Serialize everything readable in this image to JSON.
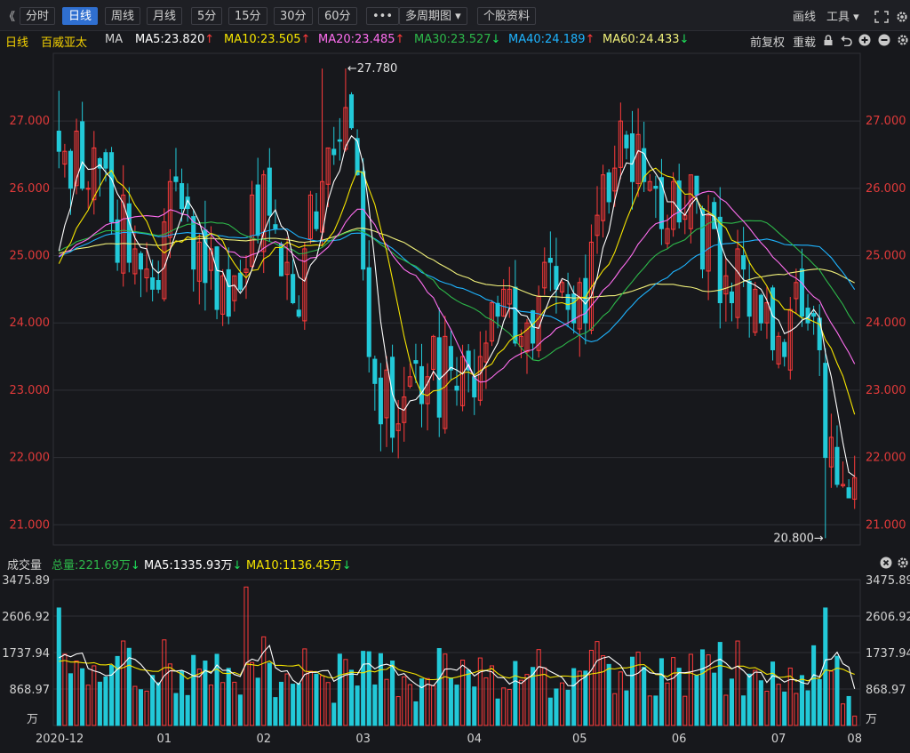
{
  "toolbar": {
    "collapse": "《",
    "tabs": [
      "分时",
      "日线",
      "周线",
      "月线",
      "5分",
      "15分",
      "30分",
      "60分",
      "•••",
      "多周期图 ▾",
      "个股资料"
    ],
    "active": "日线",
    "right": {
      "draw": "画线",
      "tools": "工具 ▾"
    }
  },
  "legend": {
    "period": "日线",
    "stock": "百威亚太",
    "ma_label": "MA",
    "ma": [
      {
        "text": "MA5:23.820",
        "arrow": "↑",
        "color": "#ffffff",
        "arrow_color": "#ff3b3b"
      },
      {
        "text": "MA10:23.505",
        "arrow": "↑",
        "color": "#f5e400",
        "arrow_color": "#ff3b3b"
      },
      {
        "text": "MA20:23.485",
        "arrow": "↑",
        "color": "#ff6ef0",
        "arrow_color": "#ff3b3b"
      },
      {
        "text": "MA30:23.527",
        "arrow": "↓",
        "color": "#2db84a",
        "arrow_color": "#1ee05a"
      },
      {
        "text": "MA40:24.189",
        "arrow": "↑",
        "color": "#1eb4ff",
        "arrow_color": "#ff3b3b"
      },
      {
        "text": "MA60:24.433",
        "arrow": "↓",
        "color": "#f0f07a",
        "arrow_color": "#1ee05a"
      }
    ],
    "right": {
      "adjust": "前复权",
      "overlay": "重载"
    }
  },
  "vol_legend": {
    "title": "成交量",
    "total": {
      "text": "总量:221.69万",
      "arrow": "↓",
      "color": "#2db84a"
    },
    "ma5": {
      "text": "MA5:1335.93万",
      "arrow": "↓",
      "color": "#ffffff"
    },
    "ma10": {
      "text": "MA10:1136.45万",
      "arrow": "↓",
      "color": "#f5e400"
    }
  },
  "chart_data": {
    "type": "candlestick",
    "price_axis": {
      "ticks": [
        "27.000",
        "26.000",
        "25.000",
        "24.000",
        "23.000",
        "22.000",
        "21.000"
      ],
      "ylim": [
        20.7,
        27.9
      ]
    },
    "annotations": {
      "high": "←27.780",
      "low": "20.800→"
    },
    "x_labels": [
      "2020-12",
      "01",
      "02",
      "03",
      "04",
      "05",
      "06",
      "07",
      "08"
    ],
    "volume_axis": {
      "ticks": [
        "3475.89",
        "2606.92",
        "1737.94",
        "868.97"
      ],
      "unit": "万",
      "ylim": [
        0,
        3475.89
      ]
    },
    "colors": {
      "up": "#ff3b3b",
      "down": "#22c9d8",
      "ma5": "#ffffff",
      "ma10": "#f5e400",
      "ma20": "#ff6ef0",
      "ma30": "#2db84a",
      "ma40": "#1eb4ff",
      "ma60": "#f0f07a"
    },
    "closes": [
      26.55,
      26.55,
      26.0,
      26.85,
      26.0,
      26.0,
      26.6,
      26.3,
      26.3,
      25.5,
      24.9,
      25.9,
      24.9,
      25.1,
      24.8,
      24.8,
      24.5,
      24.5,
      25.5,
      26.1,
      26.1,
      25.7,
      25.7,
      24.8,
      25.2,
      24.6,
      25.1,
      24.2,
      24.7,
      24.1,
      24.7,
      24.5,
      24.8,
      25.9,
      25.3,
      26.2,
      25.6,
      25.4,
      24.7,
      24.9,
      24.3,
      24.1,
      25.1,
      25.9,
      25.4,
      26.1,
      26.6,
      26.5,
      26.7,
      27.2,
      26.9,
      26.2,
      24.8,
      23.5,
      23.1,
      22.5,
      23.3,
      22.3,
      22.5,
      22.9,
      23.2,
      23.4,
      22.8,
      23.2,
      23.8,
      22.6,
      23.8,
      23.3,
      23.0,
      23.5,
      23.3,
      22.9,
      23.5,
      23.7,
      24.3,
      24.1,
      24.5,
      24.5,
      23.7,
      23.8,
      24.0,
      23.7,
      24.4,
      24.9,
      24.9,
      24.5,
      24.6,
      24.2,
      24.0,
      24.6,
      24.0,
      25.2,
      25.6,
      26.2,
      25.8,
      26.3,
      27.0,
      26.6,
      26.1,
      26.8,
      26.1,
      26.1,
      26.0,
      25.4,
      25.4,
      26.1,
      25.5,
      25.6,
      26.2,
      25.9,
      24.8,
      25.6,
      25.4,
      24.3,
      24.7,
      24.3,
      25.1,
      24.8,
      24.1,
      24.5,
      24.0,
      24.3,
      23.6,
      23.8,
      23.5,
      24.2,
      24.6,
      24.1,
      24.0,
      24.1,
      23.6,
      22.0,
      22.3,
      21.6,
      21.6,
      21.4,
      21.7
    ]
  }
}
